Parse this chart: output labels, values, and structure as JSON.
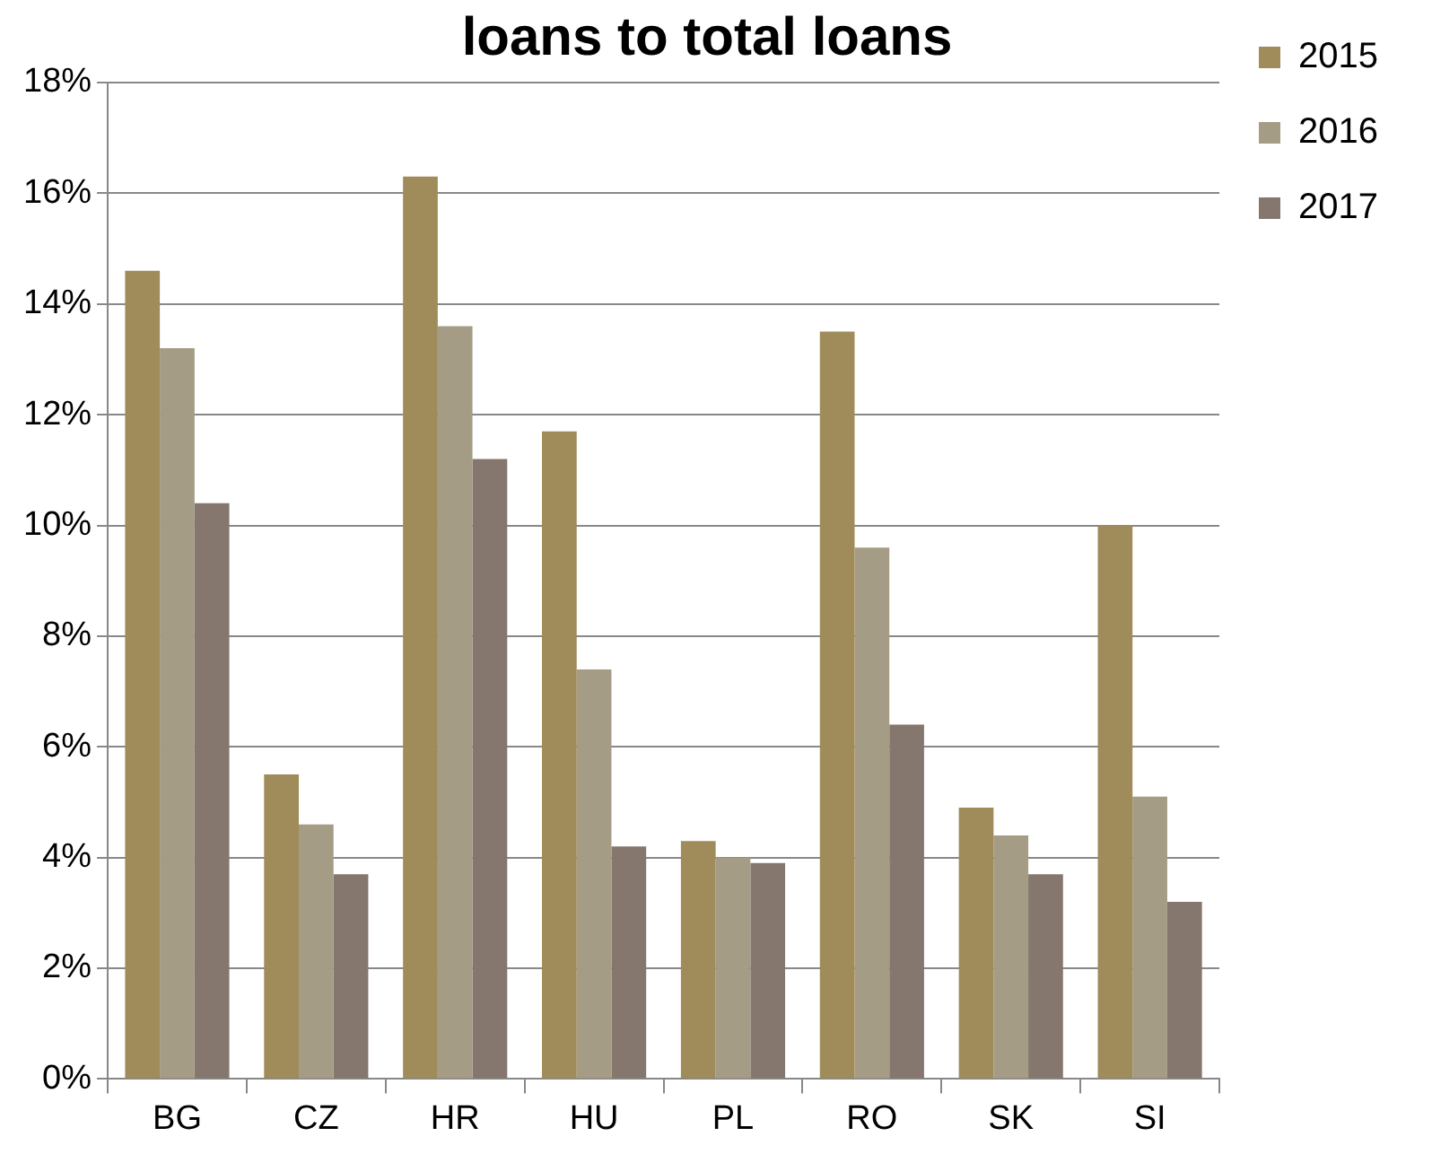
{
  "chart_data": {
    "type": "bar",
    "title": "loans to total loans",
    "categories": [
      "BG",
      "CZ",
      "HR",
      "HU",
      "PL",
      "RO",
      "SK",
      "SI"
    ],
    "series": [
      {
        "name": "2015",
        "color": "#a08c5a",
        "values": [
          14.6,
          5.5,
          16.3,
          11.7,
          4.3,
          13.5,
          4.9,
          10.0
        ]
      },
      {
        "name": "2016",
        "color": "#a49c84",
        "values": [
          13.2,
          4.6,
          13.6,
          7.4,
          4.0,
          9.6,
          4.4,
          5.1
        ]
      },
      {
        "name": "2017",
        "color": "#85776d",
        "values": [
          10.4,
          3.7,
          11.2,
          4.2,
          3.9,
          6.4,
          3.7,
          3.2
        ]
      }
    ],
    "ylim": [
      0,
      18
    ],
    "yticks": [
      {
        "value": 0,
        "label": "0%"
      },
      {
        "value": 2,
        "label": "2%"
      },
      {
        "value": 4,
        "label": "4%"
      },
      {
        "value": 6,
        "label": "6%"
      },
      {
        "value": 8,
        "label": "8%"
      },
      {
        "value": 10,
        "label": "10%"
      },
      {
        "value": 12,
        "label": "12%"
      },
      {
        "value": 14,
        "label": "14%"
      },
      {
        "value": 16,
        "label": "16%"
      },
      {
        "value": 18,
        "label": "18%"
      }
    ],
    "grid": "y",
    "legend": "right"
  }
}
